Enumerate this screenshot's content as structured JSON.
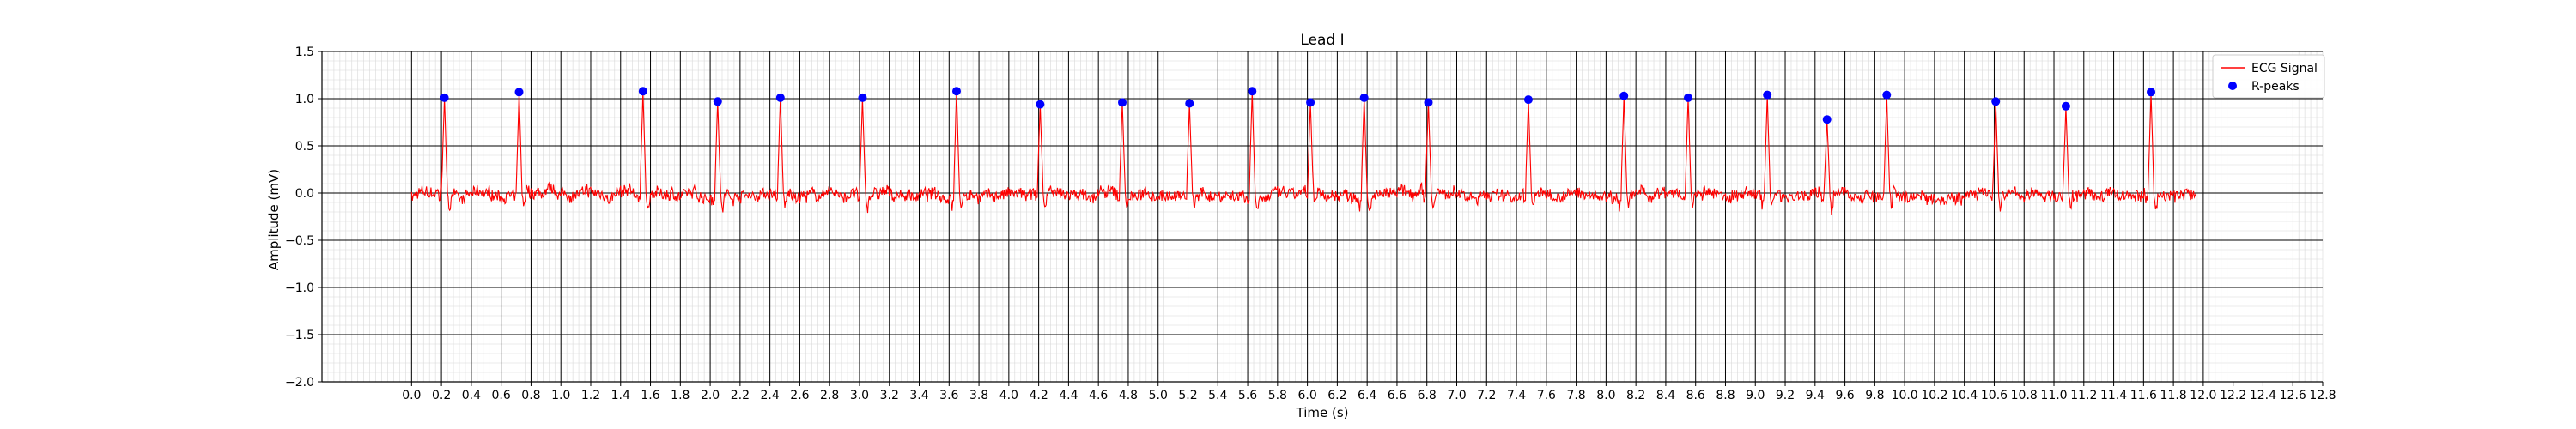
{
  "chart_data": {
    "type": "line",
    "title": "Lead I",
    "xlabel": "Time (s)",
    "ylabel": "Amplitude (mV)",
    "xlim": [
      -0.6,
      12.8
    ],
    "ylim": [
      -2.0,
      1.5
    ],
    "xticks": [
      "0.0",
      "0.2",
      "0.4",
      "0.6",
      "0.8",
      "1.0",
      "1.2",
      "1.4",
      "1.6",
      "1.8",
      "2.0",
      "2.2",
      "2.4",
      "2.6",
      "2.8",
      "3.0",
      "3.2",
      "3.4",
      "3.6",
      "3.8",
      "4.0",
      "4.2",
      "4.4",
      "4.6",
      "4.8",
      "5.0",
      "5.2",
      "5.4",
      "5.6",
      "5.8",
      "6.0",
      "6.2",
      "6.4",
      "6.6",
      "6.8",
      "7.0",
      "7.2",
      "7.4",
      "7.6",
      "7.8",
      "8.0",
      "8.2",
      "8.4",
      "8.6",
      "8.8",
      "9.0",
      "9.2",
      "9.4",
      "9.6",
      "9.8",
      "10.0",
      "10.2",
      "10.4",
      "10.6",
      "10.8",
      "11.0",
      "11.2",
      "11.4",
      "11.6",
      "11.8",
      "12.0",
      "12.2",
      "12.4",
      "12.6",
      "12.8"
    ],
    "yticks": [
      "1.5",
      "1.0",
      "0.5",
      "0.0",
      "−0.5",
      "−1.0",
      "−1.5",
      "−2.0"
    ],
    "grid": true,
    "legend_position": "top-right",
    "series": [
      {
        "name": "ECG Signal",
        "color": "#ff0000",
        "kind": "line",
        "t_start": 0.0,
        "t_end": 11.95,
        "baseline_noise_mV": 0.06
      },
      {
        "name": "R-peaks",
        "color": "#0000ff",
        "kind": "scatter",
        "x": [
          0.22,
          0.72,
          1.55,
          2.05,
          2.47,
          3.02,
          3.65,
          4.21,
          4.76,
          5.21,
          5.63,
          6.02,
          6.38,
          6.81,
          7.48,
          8.12,
          8.55,
          9.08,
          9.48,
          9.88,
          10.61,
          11.08,
          11.65
        ],
        "y": [
          1.01,
          1.07,
          1.08,
          0.97,
          1.01,
          1.01,
          1.08,
          0.94,
          0.96,
          0.95,
          1.08,
          0.96,
          1.01,
          0.96,
          0.99,
          1.03,
          1.01,
          1.04,
          0.78,
          1.04,
          0.97,
          0.92,
          1.07
        ]
      }
    ]
  }
}
